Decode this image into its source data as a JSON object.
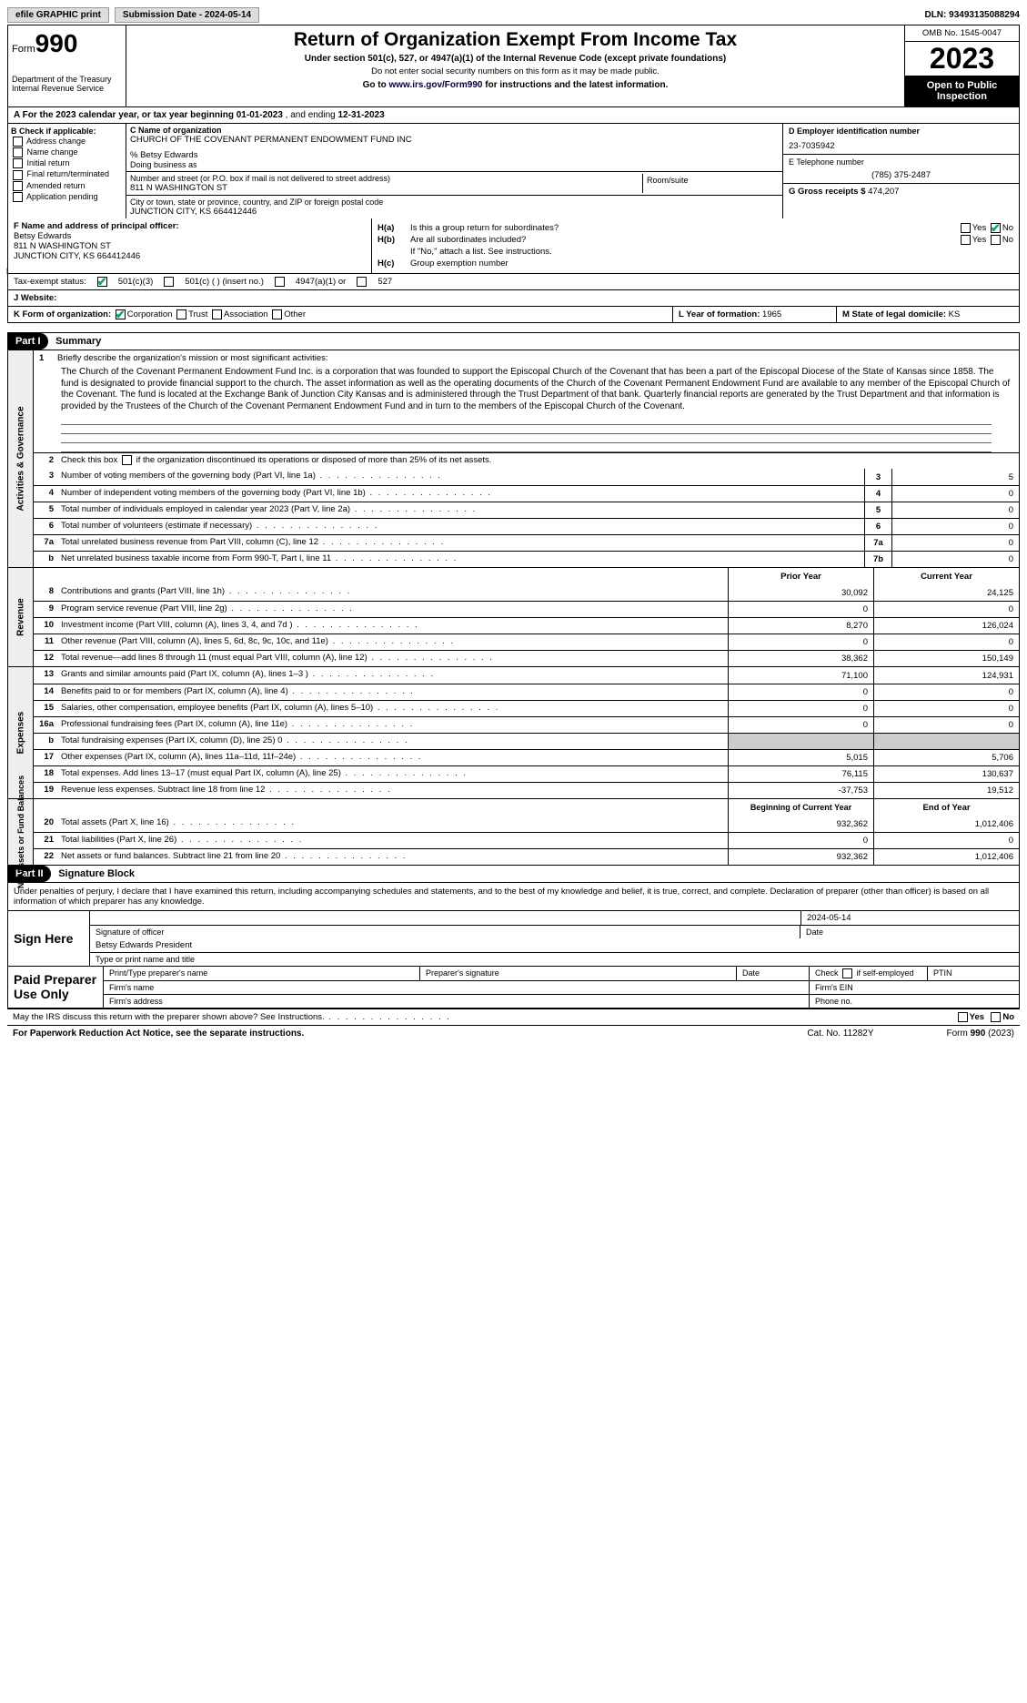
{
  "topbar": {
    "efile": "efile GRAPHIC print",
    "submission": "Submission Date - 2024-05-14",
    "dln": "DLN: 93493135088294"
  },
  "header": {
    "form_word": "Form",
    "form_num": "990",
    "dept": "Department of the Treasury\nInternal Revenue Service",
    "title": "Return of Organization Exempt From Income Tax",
    "sub": "Under section 501(c), 527, or 4947(a)(1) of the Internal Revenue Code (except private foundations)",
    "note1": "Do not enter social security numbers on this form as it may be made public.",
    "note2_pre": "Go to ",
    "note2_link": "www.irs.gov/Form990",
    "note2_post": " for instructions and the latest information.",
    "omb": "OMB No. 1545-0047",
    "year": "2023",
    "open": "Open to Public Inspection"
  },
  "rowA": {
    "text_pre": "A For the 2023 calendar year, or tax year beginning ",
    "begin": "01-01-2023",
    "mid": " , and ending ",
    "end": "12-31-2023"
  },
  "colB": {
    "label": "B Check if applicable:",
    "items": [
      "Address change",
      "Name change",
      "Initial return",
      "Final return/terminated",
      "Amended return",
      "Application pending"
    ]
  },
  "colC": {
    "name_label": "C Name of organization",
    "name": "CHURCH OF THE COVENANT PERMANENT ENDOWMENT FUND INC",
    "care_of": "% Betsy Edwards",
    "dba_label": "Doing business as",
    "dba": "",
    "addr_label": "Number and street (or P.O. box if mail is not delivered to street address)",
    "room_label": "Room/suite",
    "addr": "811 N WASHINGTON ST",
    "city_label": "City or town, state or province, country, and ZIP or foreign postal code",
    "city": "JUNCTION CITY, KS  664412446"
  },
  "colD": {
    "ein_label": "D Employer identification number",
    "ein": "23-7035942",
    "tel_label": "E Telephone number",
    "tel": "(785) 375-2487",
    "gross_label": "G Gross receipts $",
    "gross": "474,207"
  },
  "colF": {
    "label": "F  Name and address of principal officer:",
    "name": "Betsy Edwards",
    "addr1": "811 N WASHINGTON ST",
    "addr2": "JUNCTION CITY, KS  664412446"
  },
  "colH": {
    "ha": "Is this a group return for subordinates?",
    "hb": "Are all subordinates included?",
    "hb_note": "If \"No,\" attach a list. See instructions.",
    "hc": "Group exemption number"
  },
  "rowI": {
    "label": "Tax-exempt status:",
    "opts": [
      "501(c)(3)",
      "501(c) (  ) (insert no.)",
      "4947(a)(1) or",
      "527"
    ]
  },
  "rowJ": {
    "label": "J Website:",
    "val": ""
  },
  "rowK": {
    "label": "K Form of organization:",
    "opts": [
      "Corporation",
      "Trust",
      "Association",
      "Other"
    ],
    "l_label": "L Year of formation:",
    "l_val": "1965",
    "m_label": "M State of legal domicile:",
    "m_val": "KS"
  },
  "partI": {
    "hdr": "Part I",
    "title": "Summary"
  },
  "mission_label": "Briefly describe the organization's mission or most significant activities:",
  "mission": "The Church of the Covenant Permanent Endowment Fund Inc. is a corporation that was founded to support the Episcopal Church of the Covenant that has been a part of the Episcopal Diocese of the State of Kansas since 1858. The fund is designated to provide financial support to the church. The asset information as well as the operating documents of the Church of the Covenant Permanent Endowment Fund are available to any member of the Episcopal Church of the Covenant. The fund is located at the Exchange Bank of Junction City Kansas and is administered through the Trust Department of that bank. Quarterly financial reports are generated by the Trust Department and that information is provided by the Trustees of the Church of the Covenant Permanent Endowment Fund and in turn to the members of the Episcopal Church of the Covenant.",
  "line2": "Check this box      if the organization discontinued its operations or disposed of more than 25% of its net assets.",
  "gov_lines": [
    {
      "n": "3",
      "t": "Number of voting members of the governing body (Part VI, line 1a)",
      "b": "3",
      "v": "5"
    },
    {
      "n": "4",
      "t": "Number of independent voting members of the governing body (Part VI, line 1b)",
      "b": "4",
      "v": "0"
    },
    {
      "n": "5",
      "t": "Total number of individuals employed in calendar year 2023 (Part V, line 2a)",
      "b": "5",
      "v": "0"
    },
    {
      "n": "6",
      "t": "Total number of volunteers (estimate if necessary)",
      "b": "6",
      "v": "0"
    },
    {
      "n": "7a",
      "t": "Total unrelated business revenue from Part VIII, column (C), line 12",
      "b": "7a",
      "v": "0"
    },
    {
      "n": "b",
      "t": "Net unrelated business taxable income from Form 990-T, Part I, line 11",
      "b": "7b",
      "v": "0"
    }
  ],
  "col_hdr": {
    "prior": "Prior Year",
    "current": "Current Year"
  },
  "rev_lines": [
    {
      "n": "8",
      "t": "Contributions and grants (Part VIII, line 1h)",
      "p": "30,092",
      "c": "24,125"
    },
    {
      "n": "9",
      "t": "Program service revenue (Part VIII, line 2g)",
      "p": "0",
      "c": "0"
    },
    {
      "n": "10",
      "t": "Investment income (Part VIII, column (A), lines 3, 4, and 7d )",
      "p": "8,270",
      "c": "126,024"
    },
    {
      "n": "11",
      "t": "Other revenue (Part VIII, column (A), lines 5, 6d, 8c, 9c, 10c, and 11e)",
      "p": "0",
      "c": "0"
    },
    {
      "n": "12",
      "t": "Total revenue—add lines 8 through 11 (must equal Part VIII, column (A), line 12)",
      "p": "38,362",
      "c": "150,149"
    }
  ],
  "exp_lines": [
    {
      "n": "13",
      "t": "Grants and similar amounts paid (Part IX, column (A), lines 1–3 )",
      "p": "71,100",
      "c": "124,931"
    },
    {
      "n": "14",
      "t": "Benefits paid to or for members (Part IX, column (A), line 4)",
      "p": "0",
      "c": "0"
    },
    {
      "n": "15",
      "t": "Salaries, other compensation, employee benefits (Part IX, column (A), lines 5–10)",
      "p": "0",
      "c": "0"
    },
    {
      "n": "16a",
      "t": "Professional fundraising fees (Part IX, column (A), line 11e)",
      "p": "0",
      "c": "0"
    },
    {
      "n": "b",
      "t": "Total fundraising expenses (Part IX, column (D), line 25) 0",
      "p": "",
      "c": "",
      "gray": true
    },
    {
      "n": "17",
      "t": "Other expenses (Part IX, column (A), lines 11a–11d, 11f–24e)",
      "p": "5,015",
      "c": "5,706"
    },
    {
      "n": "18",
      "t": "Total expenses. Add lines 13–17 (must equal Part IX, column (A), line 25)",
      "p": "76,115",
      "c": "130,637"
    },
    {
      "n": "19",
      "t": "Revenue less expenses. Subtract line 18 from line 12",
      "p": "-37,753",
      "c": "19,512"
    }
  ],
  "na_hdr": {
    "begin": "Beginning of Current Year",
    "end": "End of Year"
  },
  "na_lines": [
    {
      "n": "20",
      "t": "Total assets (Part X, line 16)",
      "p": "932,362",
      "c": "1,012,406"
    },
    {
      "n": "21",
      "t": "Total liabilities (Part X, line 26)",
      "p": "0",
      "c": "0"
    },
    {
      "n": "22",
      "t": "Net assets or fund balances. Subtract line 21 from line 20",
      "p": "932,362",
      "c": "1,012,406"
    }
  ],
  "vtabs": {
    "gov": "Activities & Governance",
    "rev": "Revenue",
    "exp": "Expenses",
    "na": "Net Assets or\nFund Balances"
  },
  "partII": {
    "hdr": "Part II",
    "title": "Signature Block"
  },
  "perjury": "Under penalties of perjury, I declare that I have examined this return, including accompanying schedules and statements, and to the best of my knowledge and belief, it is true, correct, and complete. Declaration of preparer (other than officer) is based on all information of which preparer has any knowledge.",
  "sign": {
    "label": "Sign Here",
    "date": "2024-05-14",
    "sig_label": "Signature of officer",
    "name": "Betsy Edwards  President",
    "name_label": "Type or print name and title",
    "date_label": "Date"
  },
  "paid": {
    "label": "Paid Preparer Use Only",
    "h1": "Print/Type preparer's name",
    "h2": "Preparer's signature",
    "h3": "Date",
    "h4": "Check        if self-employed",
    "h5": "PTIN",
    "firm_name": "Firm's name",
    "firm_ein": "Firm's EIN",
    "firm_addr": "Firm's address",
    "phone": "Phone no."
  },
  "discuss": "May the IRS discuss this return with the preparer shown above? See Instructions.",
  "yes": "Yes",
  "no": "No",
  "footer": {
    "pra": "For Paperwork Reduction Act Notice, see the separate instructions.",
    "cat": "Cat. No. 11282Y",
    "form": "Form 990 (2023)"
  }
}
